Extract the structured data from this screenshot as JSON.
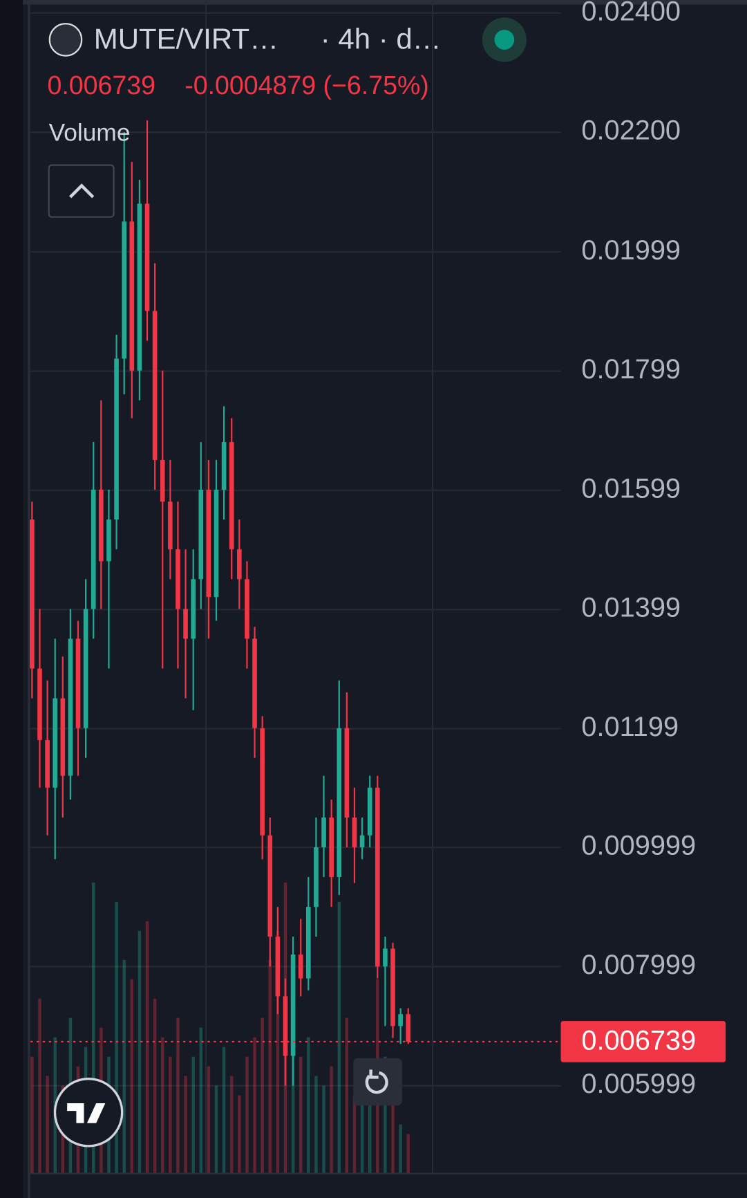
{
  "header": {
    "symbol": "MUTE/VIRT…",
    "interval": "· 4h · d…",
    "last": "0.006739",
    "change": "-0.0004879 (−6.75%)",
    "volume_label": "Volume"
  },
  "chart_data": {
    "type": "candlestick",
    "up_color": "#22ab94",
    "down_color": "#f23645",
    "open": [
      0.0155,
      0.013,
      0.0118,
      0.011,
      0.0125,
      0.0112,
      0.0135,
      0.012,
      0.014,
      0.016,
      0.0148,
      0.0155,
      0.0182,
      0.0205,
      0.018,
      0.0208,
      0.019,
      0.0165,
      0.0158,
      0.015,
      0.014,
      0.0135,
      0.0145,
      0.016,
      0.0142,
      0.016,
      0.0168,
      0.015,
      0.0145,
      0.0135,
      0.012,
      0.0102,
      0.0085,
      0.0075,
      0.0065,
      0.0082,
      0.0078,
      0.009,
      0.01,
      0.0105,
      0.0095,
      0.012,
      0.0105,
      0.01,
      0.0102,
      0.011,
      0.008,
      0.0083,
      0.007,
      0.0072
    ],
    "high": [
      0.0158,
      0.014,
      0.0128,
      0.0135,
      0.0132,
      0.014,
      0.0138,
      0.0145,
      0.0168,
      0.0175,
      0.016,
      0.0186,
      0.022,
      0.0215,
      0.0212,
      0.0222,
      0.0198,
      0.018,
      0.0165,
      0.0158,
      0.015,
      0.015,
      0.0168,
      0.0165,
      0.0165,
      0.0174,
      0.0172,
      0.0155,
      0.0148,
      0.0137,
      0.0122,
      0.0105,
      0.009,
      0.0078,
      0.0085,
      0.0088,
      0.0095,
      0.0105,
      0.0112,
      0.0108,
      0.0128,
      0.0126,
      0.011,
      0.0105,
      0.0112,
      0.0112,
      0.0085,
      0.0084,
      0.0073,
      0.0073
    ],
    "low": [
      0.0125,
      0.011,
      0.0102,
      0.0098,
      0.0105,
      0.0108,
      0.0112,
      0.0115,
      0.0135,
      0.014,
      0.013,
      0.015,
      0.0176,
      0.0172,
      0.0175,
      0.0185,
      0.016,
      0.013,
      0.0145,
      0.013,
      0.0125,
      0.0123,
      0.014,
      0.0135,
      0.0138,
      0.0155,
      0.0145,
      0.014,
      0.013,
      0.0115,
      0.0098,
      0.008,
      0.0072,
      0.006,
      0.006,
      0.0075,
      0.0076,
      0.0085,
      0.0095,
      0.009,
      0.0092,
      0.01,
      0.0094,
      0.0098,
      0.01,
      0.0078,
      0.007,
      0.0068,
      0.0067,
      0.0067
    ],
    "close": [
      0.013,
      0.0118,
      0.011,
      0.0125,
      0.0112,
      0.0135,
      0.012,
      0.014,
      0.016,
      0.0148,
      0.0155,
      0.0182,
      0.0205,
      0.018,
      0.0208,
      0.019,
      0.0165,
      0.0158,
      0.015,
      0.014,
      0.0135,
      0.0145,
      0.016,
      0.0142,
      0.016,
      0.0168,
      0.015,
      0.0145,
      0.0135,
      0.012,
      0.0102,
      0.0085,
      0.0075,
      0.0065,
      0.0082,
      0.0078,
      0.009,
      0.01,
      0.0105,
      0.0095,
      0.012,
      0.0105,
      0.01,
      0.0102,
      0.011,
      0.008,
      0.0083,
      0.007,
      0.0072,
      0.006739
    ],
    "volume": [
      12,
      18,
      10,
      14,
      9,
      16,
      11,
      13,
      30,
      15,
      12,
      28,
      22,
      20,
      25,
      26,
      18,
      14,
      12,
      16,
      10,
      12,
      15,
      11,
      9,
      13,
      10,
      8,
      12,
      14,
      16,
      22,
      25,
      30,
      18,
      12,
      14,
      10,
      9,
      11,
      28,
      16,
      8,
      7,
      9,
      20,
      12,
      9,
      5,
      4
    ],
    "ylim": [
      0.004538,
      0.024218
    ],
    "yticks": [
      {
        "value": 0.024,
        "label": "0.02400"
      },
      {
        "value": 0.022,
        "label": "0.02200"
      },
      0.01999,
      0.01799,
      0.01599,
      0.01399,
      0.01199,
      0.009999,
      0.007999,
      0.005999
    ],
    "last_price": 0.006739,
    "last_price_label": "0.006739",
    "grid": true
  }
}
